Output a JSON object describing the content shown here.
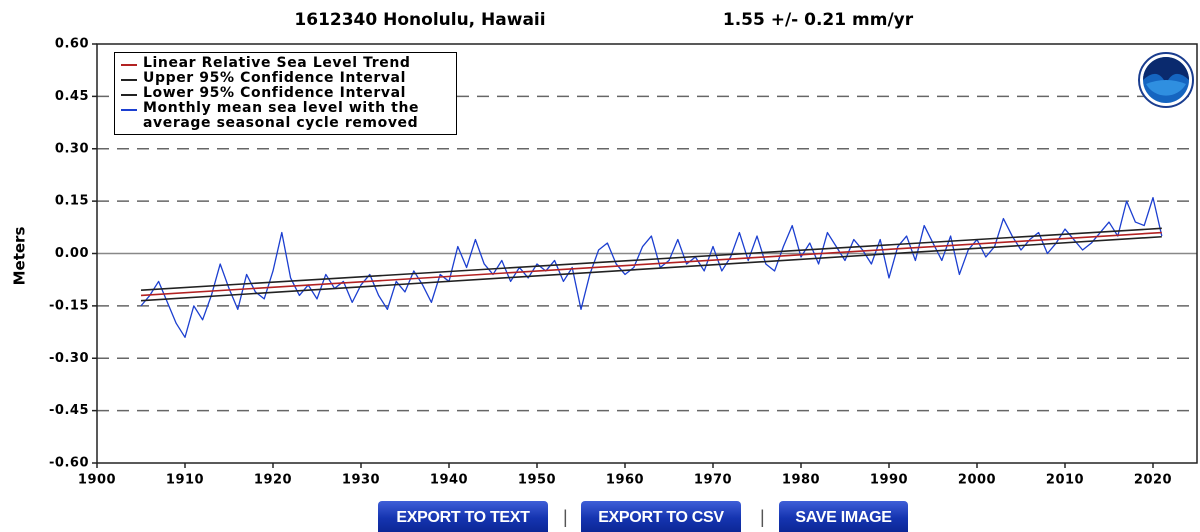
{
  "chart_data": {
    "type": "line",
    "title": "1612340 Honolulu, Hawaii",
    "subtitle": "1.55 +/-  0.21 mm/yr",
    "y_label": "Meters",
    "xlim": [
      1900,
      2025
    ],
    "xticks": [
      1900,
      1910,
      1920,
      1930,
      1940,
      1950,
      1960,
      1970,
      1980,
      1990,
      2000,
      2010,
      2020
    ],
    "ylim": [
      -0.6,
      0.6
    ],
    "yticks": [
      {
        "value": 0.6,
        "label": "0.60"
      },
      {
        "value": 0.45,
        "label": "0.45"
      },
      {
        "value": 0.3,
        "label": "0.30"
      },
      {
        "value": 0.15,
        "label": "0.15"
      },
      {
        "value": 0,
        "label": "0.00"
      },
      {
        "value": -0.15,
        "label": "-0.15"
      },
      {
        "value": -0.3,
        "label": "-0.30"
      },
      {
        "value": -0.45,
        "label": "-0.45"
      },
      {
        "value": -0.6,
        "label": "-0.60"
      }
    ],
    "grid": true,
    "legend": "upper left",
    "series": [
      {
        "name": "Linear Relative Sea Level Trend",
        "color": "#b22222",
        "x": [
          1905,
          2021
        ],
        "values": [
          -0.12,
          0.06
        ]
      },
      {
        "name": "Upper 95% Confidence Interval",
        "color": "#222222",
        "x": [
          1905,
          2021
        ],
        "values": [
          -0.105,
          0.072
        ]
      },
      {
        "name": "Lower 95% Confidence Interval",
        "color": "#222222",
        "x": [
          1905,
          2021
        ],
        "values": [
          -0.135,
          0.048
        ]
      },
      {
        "name": "Monthly mean sea level with the average seasonal cycle removed",
        "color": "#1c3fd0",
        "x": [
          1905,
          1906,
          1907,
          1908,
          1909,
          1910,
          1911,
          1912,
          1913,
          1914,
          1915,
          1916,
          1917,
          1918,
          1919,
          1920,
          1921,
          1922,
          1923,
          1924,
          1925,
          1926,
          1927,
          1928,
          1929,
          1930,
          1931,
          1932,
          1933,
          1934,
          1935,
          1936,
          1937,
          1938,
          1939,
          1940,
          1941,
          1942,
          1943,
          1944,
          1945,
          1946,
          1947,
          1948,
          1949,
          1950,
          1951,
          1952,
          1953,
          1954,
          1955,
          1956,
          1957,
          1958,
          1959,
          1960,
          1961,
          1962,
          1963,
          1964,
          1965,
          1966,
          1967,
          1968,
          1969,
          1970,
          1971,
          1972,
          1973,
          1974,
          1975,
          1976,
          1977,
          1978,
          1979,
          1980,
          1981,
          1982,
          1983,
          1984,
          1985,
          1986,
          1987,
          1988,
          1989,
          1990,
          1991,
          1992,
          1993,
          1994,
          1995,
          1996,
          1997,
          1998,
          1999,
          2000,
          2001,
          2002,
          2003,
          2004,
          2005,
          2006,
          2007,
          2008,
          2009,
          2010,
          2011,
          2012,
          2013,
          2014,
          2015,
          2016,
          2017,
          2018,
          2019,
          2020,
          2021
        ],
        "values": [
          -0.15,
          -0.12,
          -0.08,
          -0.14,
          -0.2,
          -0.24,
          -0.15,
          -0.19,
          -0.12,
          -0.03,
          -0.1,
          -0.16,
          -0.06,
          -0.11,
          -0.13,
          -0.05,
          0.06,
          -0.07,
          -0.12,
          -0.09,
          -0.13,
          -0.06,
          -0.1,
          -0.08,
          -0.14,
          -0.09,
          -0.06,
          -0.12,
          -0.16,
          -0.08,
          -0.11,
          -0.05,
          -0.09,
          -0.14,
          -0.06,
          -0.08,
          0.02,
          -0.04,
          0.04,
          -0.03,
          -0.06,
          -0.02,
          -0.08,
          -0.04,
          -0.07,
          -0.03,
          -0.05,
          -0.02,
          -0.08,
          -0.04,
          -0.16,
          -0.06,
          0.01,
          0.03,
          -0.03,
          -0.06,
          -0.04,
          0.02,
          0.05,
          -0.04,
          -0.02,
          0.04,
          -0.03,
          -0.01,
          -0.05,
          0.02,
          -0.05,
          -0.01,
          0.06,
          -0.02,
          0.05,
          -0.03,
          -0.05,
          0.02,
          0.08,
          -0.01,
          0.03,
          -0.03,
          0.06,
          0.02,
          -0.02,
          0.04,
          0.01,
          -0.03,
          0.04,
          -0.07,
          0.02,
          0.05,
          -0.02,
          0.08,
          0.03,
          -0.02,
          0.05,
          -0.06,
          0.01,
          0.04,
          -0.01,
          0.02,
          0.1,
          0.05,
          0.01,
          0.04,
          0.06,
          0.0,
          0.03,
          0.07,
          0.04,
          0.01,
          0.03,
          0.06,
          0.09,
          0.05,
          0.15,
          0.09,
          0.08,
          0.16,
          0.05
        ]
      }
    ]
  },
  "buttons": [
    "EXPORT TO TEXT",
    "EXPORT TO CSV",
    "SAVE IMAGE"
  ],
  "separators": [
    "|",
    "|"
  ]
}
